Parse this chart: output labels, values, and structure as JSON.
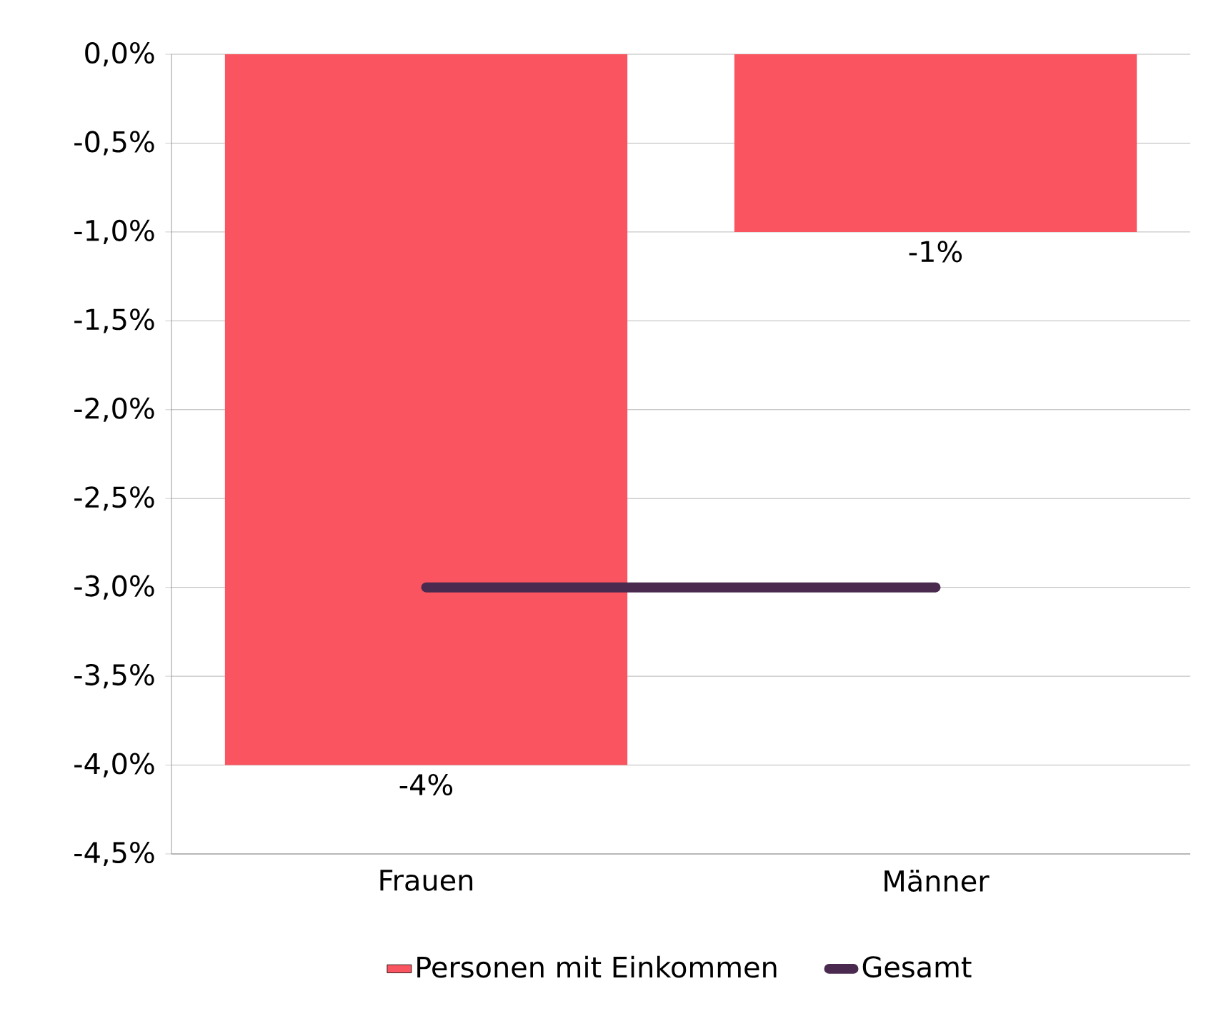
{
  "chart_data": {
    "type": "bar",
    "categories": [
      "Frauen",
      "Männer"
    ],
    "series": [
      {
        "name": "Personen mit Einkommen",
        "color": "#f9545f",
        "values": [
          -4,
          -1
        ],
        "value_labels": [
          "-4%",
          "-1%"
        ]
      },
      {
        "name": "Gesamt",
        "type": "line",
        "color": "#4a2a4f",
        "values": [
          -3,
          -3
        ]
      }
    ],
    "ylim": [
      -4.5,
      0
    ],
    "yticks": [
      {
        "value": 0,
        "label": "0,0%"
      },
      {
        "value": -0.5,
        "label": "-0,5%"
      },
      {
        "value": -1,
        "label": "-1,0%"
      },
      {
        "value": -1.5,
        "label": "-1,5%"
      },
      {
        "value": -2,
        "label": "-2,0%"
      },
      {
        "value": -2.5,
        "label": "-2,5%"
      },
      {
        "value": -3,
        "label": "-3,0%"
      },
      {
        "value": -3.5,
        "label": "-3,5%"
      },
      {
        "value": -4,
        "label": "-4,0%"
      },
      {
        "value": -4.5,
        "label": "-4,5%"
      }
    ],
    "grid": "y",
    "legend": "bottom"
  }
}
